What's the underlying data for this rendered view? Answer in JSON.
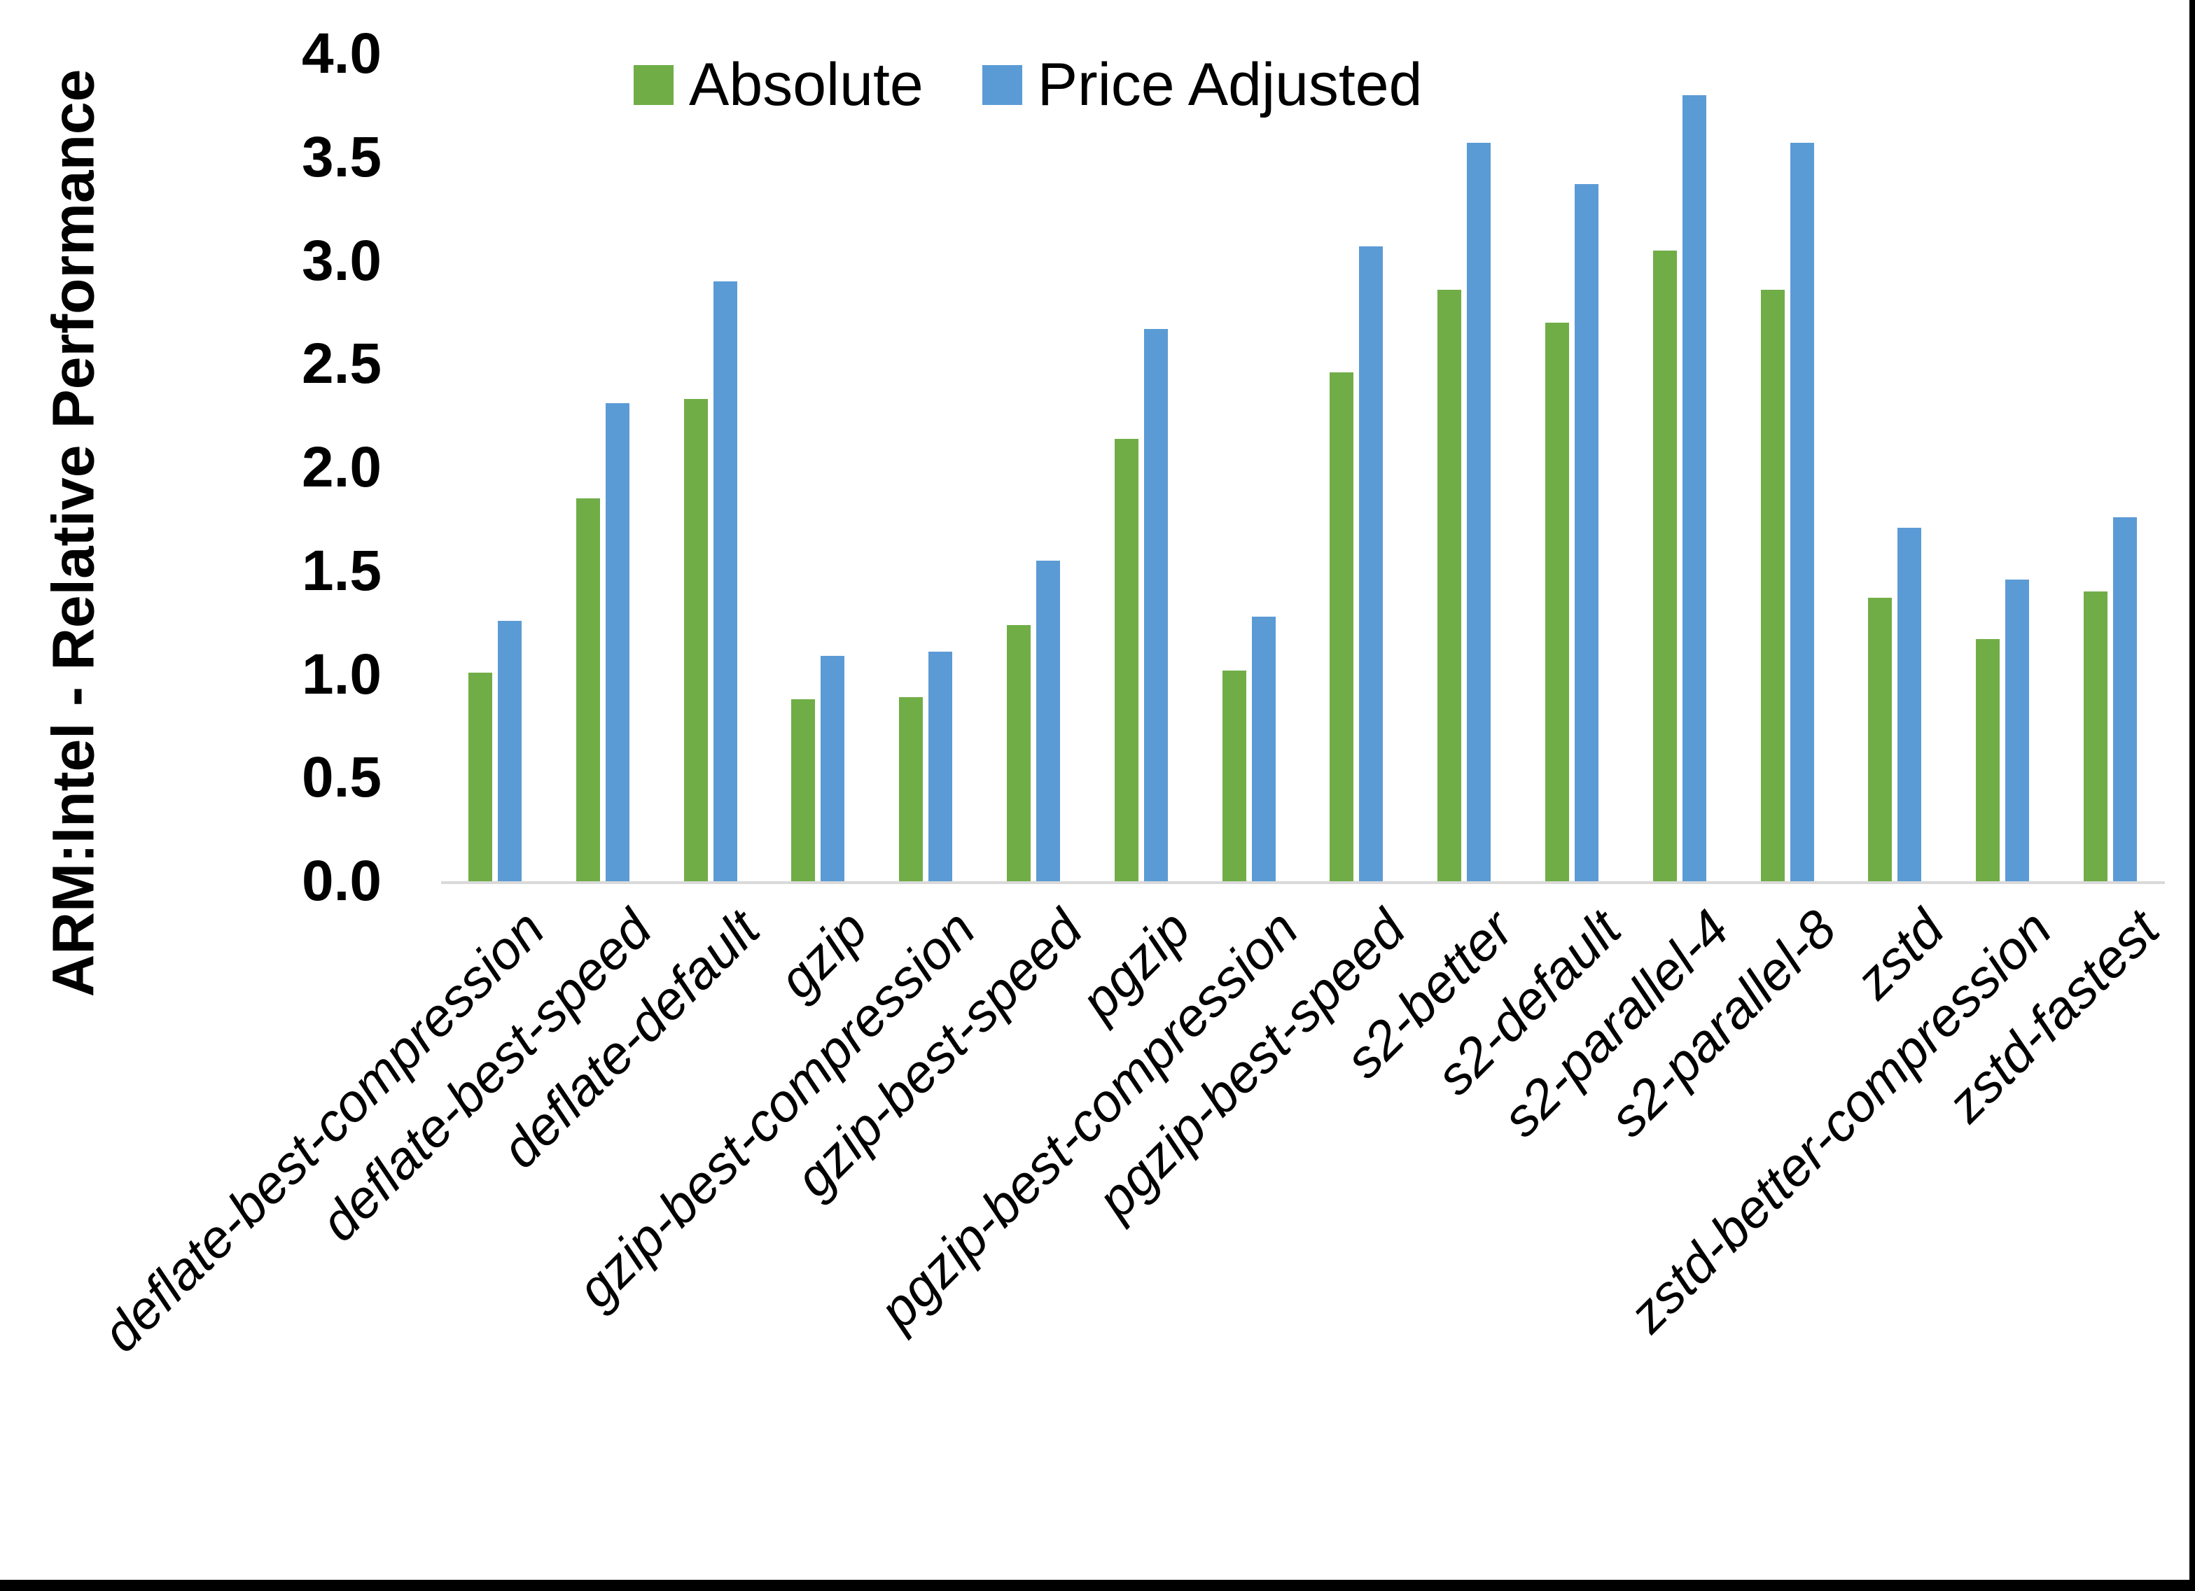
{
  "chart_data": {
    "type": "bar",
    "title": "",
    "ylabel": "ARM:Intel - Relative Performance",
    "xlabel": "",
    "ylim": [
      0.0,
      4.0
    ],
    "ytick_step": 0.5,
    "yticks": [
      "0.0",
      "0.5",
      "1.0",
      "1.5",
      "2.0",
      "2.5",
      "3.0",
      "3.5",
      "4.0"
    ],
    "grid": "off",
    "legend_position": "top",
    "categories": [
      "deflate-best-compression",
      "deflate-best-speed",
      "deflate-default",
      "gzip",
      "gzip-best-compression",
      "gzip-best-speed",
      "pgzip",
      "pgzip-best-compression",
      "pgzip-best-speed",
      "s2-better",
      "s2-default",
      "s2-parallel-4",
      "s2-parallel-8",
      "zstd",
      "zstd-better-compression",
      "zstd-fastest"
    ],
    "series": [
      {
        "name": "Absolute",
        "color": "#70ad47",
        "values": [
          1.01,
          1.85,
          2.33,
          0.88,
          0.89,
          1.24,
          2.14,
          1.02,
          2.46,
          2.86,
          2.7,
          3.05,
          2.86,
          1.37,
          1.17,
          1.4
        ]
      },
      {
        "name": "Price Adjusted",
        "color": "#5b9bd5",
        "values": [
          1.26,
          2.31,
          2.9,
          1.09,
          1.11,
          1.55,
          2.67,
          1.28,
          3.07,
          3.57,
          3.37,
          3.8,
          3.57,
          1.71,
          1.46,
          1.76
        ]
      }
    ],
    "axis_line_color": "#d9d9d9",
    "background_color": "#ffffff"
  },
  "legend": {
    "items": [
      {
        "label": "Absolute",
        "color": "#70ad47"
      },
      {
        "label": "Price Adjusted",
        "color": "#5b9bd5"
      }
    ]
  }
}
